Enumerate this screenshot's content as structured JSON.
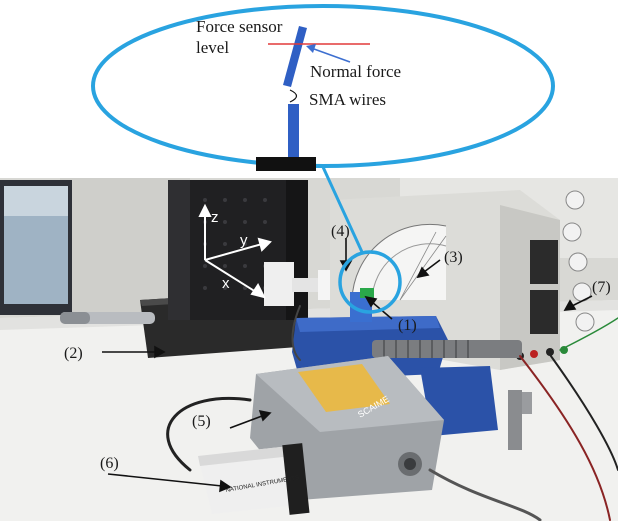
{
  "inset": {
    "force_sensor_label": "Force sensor",
    "level_label": "level",
    "normal_force_label": "Normal force",
    "sma_wires_label": "SMA wires"
  },
  "axes": {
    "z": "z",
    "y": "y",
    "x": "x"
  },
  "callouts": {
    "c1": "(1)",
    "c2": "(2)",
    "c3": "(3)",
    "c4": "(4)",
    "c5": "(5)",
    "c6": "(6)",
    "c7": "(7)"
  },
  "device_text": {
    "loadcell_brand": "SCAIME",
    "daq_brand": "NATIONAL INSTRUMENTS"
  },
  "colors": {
    "ellipse": "#29a3e0",
    "sensor_line": "#e23a3a",
    "arrow_blue": "#3d6fd0",
    "wire_blue": "#2f5fc4"
  }
}
